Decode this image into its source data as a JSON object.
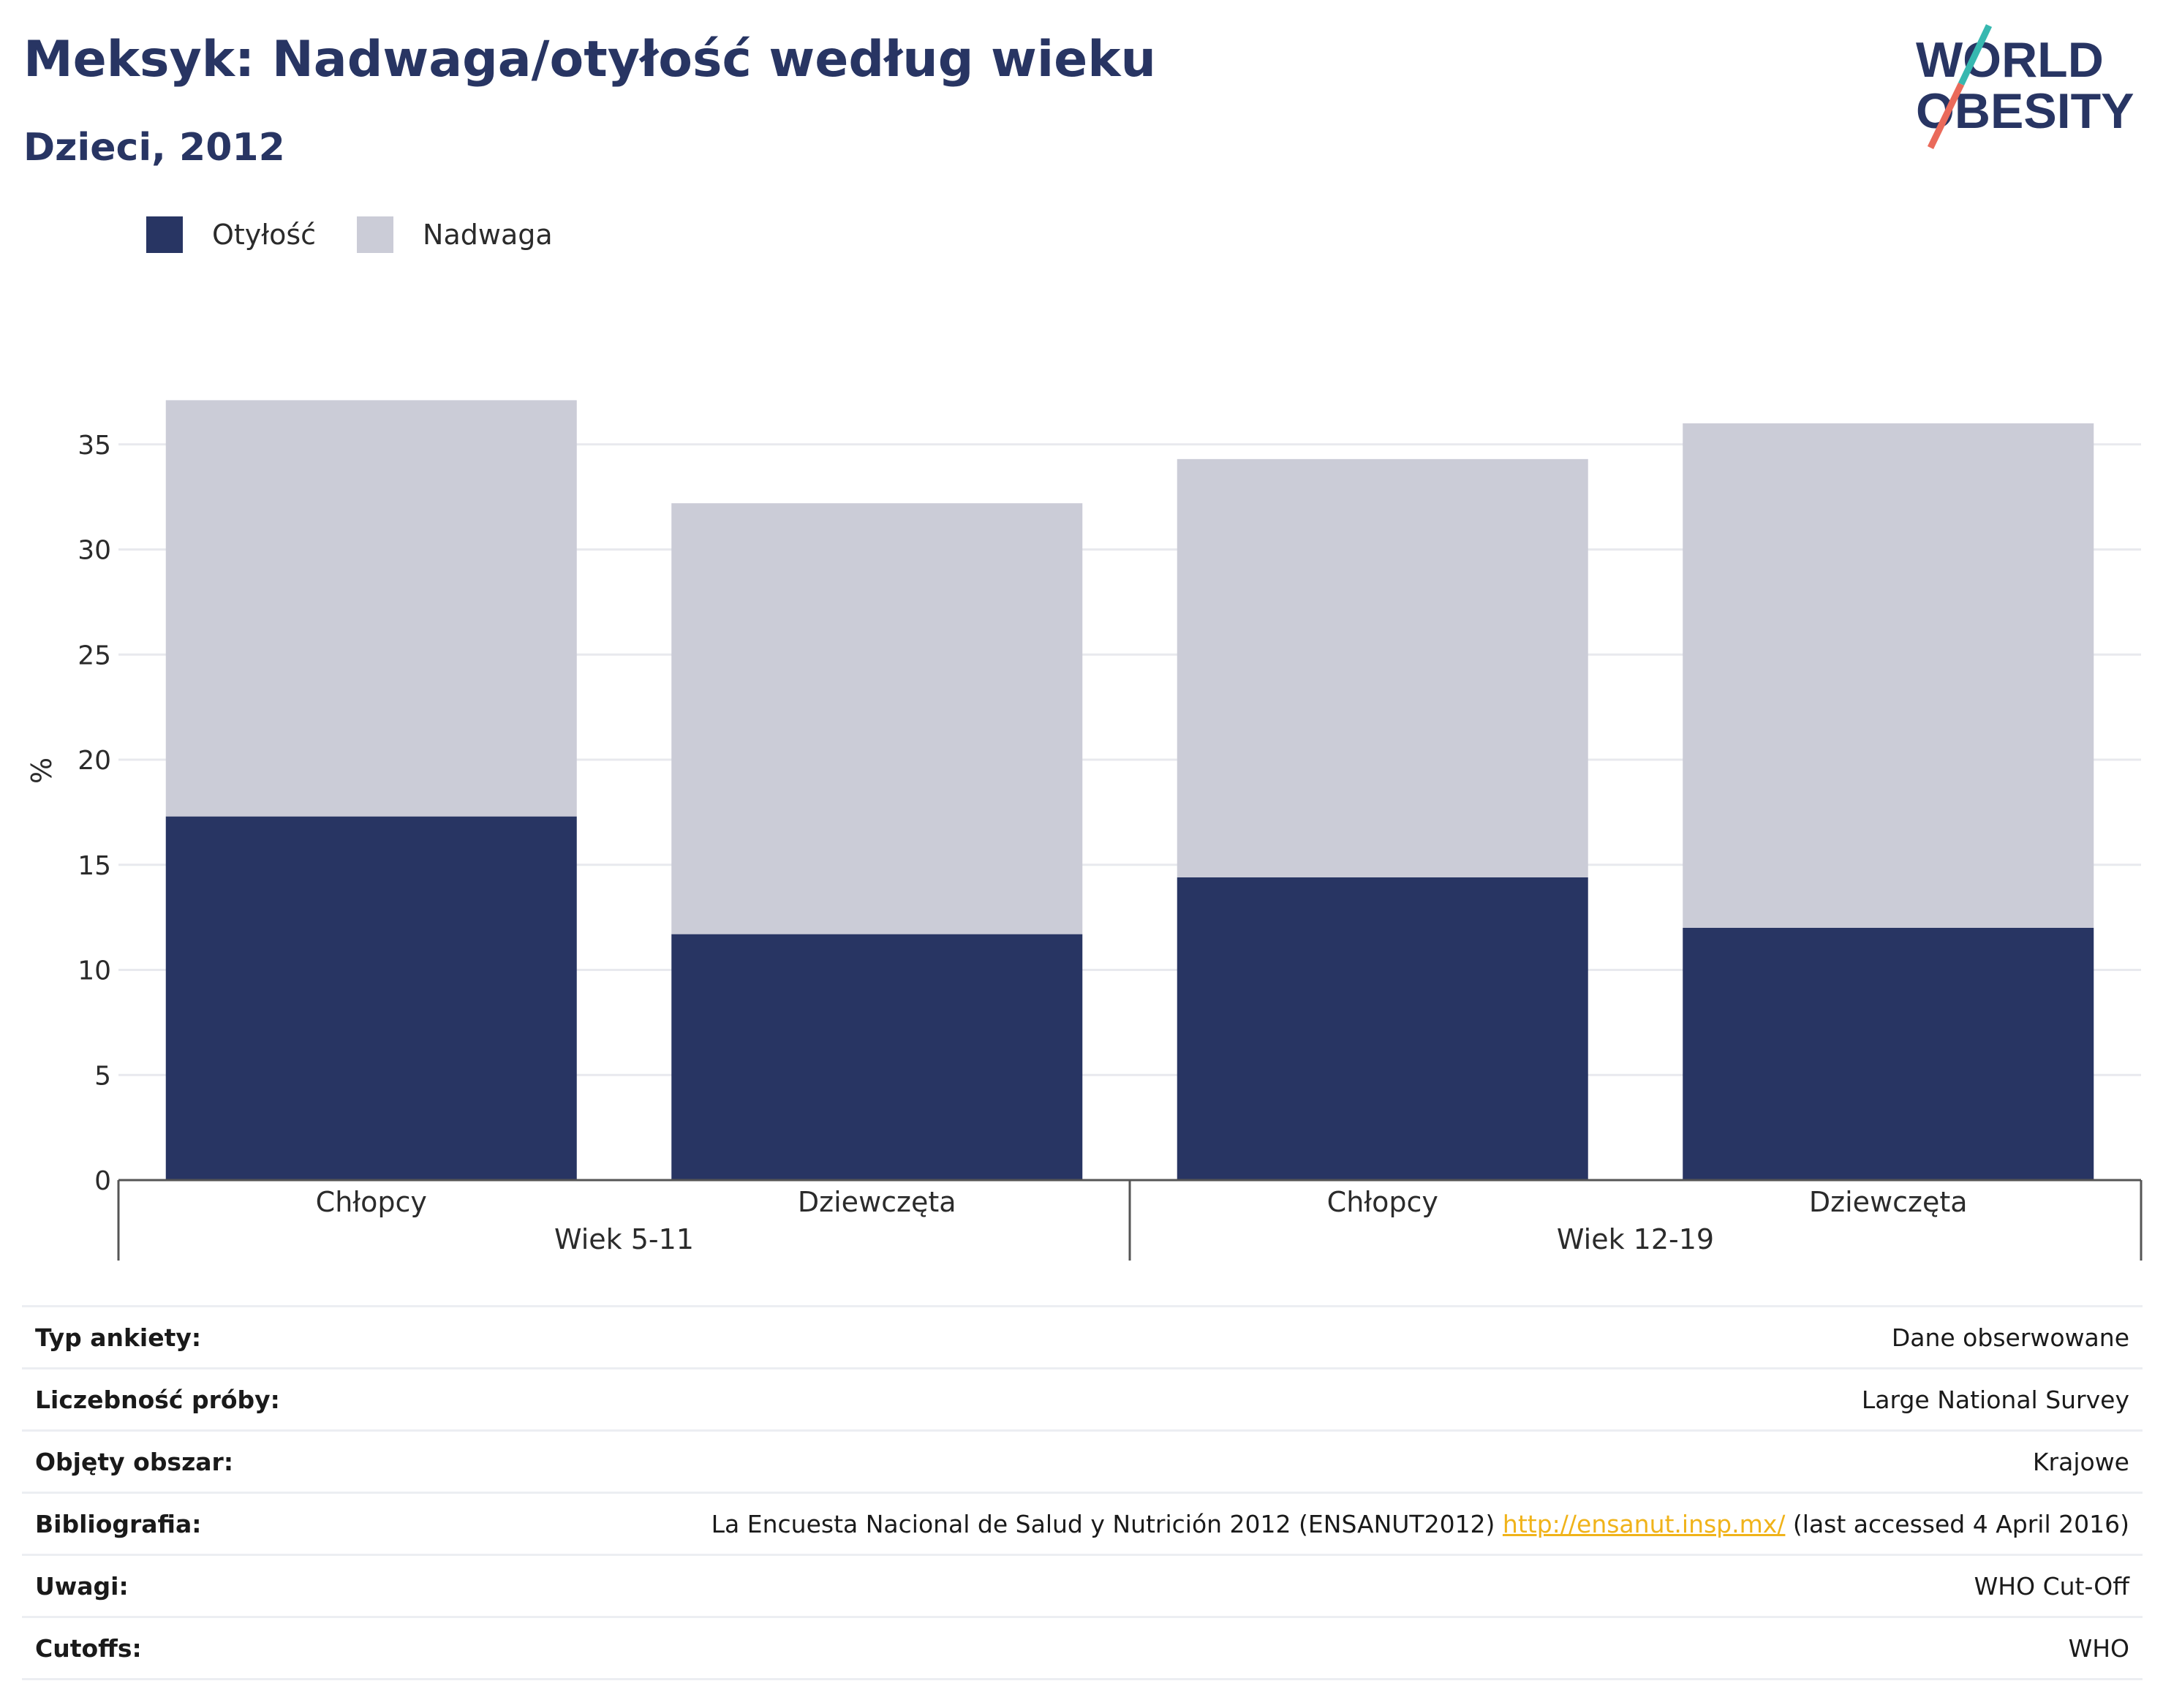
{
  "header": {
    "title": "Meksyk: Nadwaga/otyłość według wieku",
    "subtitle": "Dzieci, 2012"
  },
  "logo": {
    "line1": "WORLD",
    "line2": "OBESITY"
  },
  "colors": {
    "obesity": "#283563",
    "overweight": "#cbccd7",
    "accent_teal": "#37b8b0",
    "accent_coral": "#ea6a5a",
    "link": "#f0b31a"
  },
  "chart_data": {
    "type": "bar",
    "stacked": true,
    "title": "",
    "xlabel": "",
    "ylabel": "%",
    "ylim": [
      0,
      37.5
    ],
    "yticks": [
      0,
      5,
      10,
      15,
      20,
      25,
      30,
      35
    ],
    "grid": true,
    "legend_position": "top-left",
    "groups": [
      {
        "label": "Wiek 5-11",
        "categories": [
          "Chłopcy",
          "Dziewczęta"
        ]
      },
      {
        "label": "Wiek 12-19",
        "categories": [
          "Chłopcy",
          "Dziewczęta"
        ]
      }
    ],
    "categories": [
      "Chłopcy",
      "Dziewczęta",
      "Chłopcy",
      "Dziewczęta"
    ],
    "series": [
      {
        "name": "Otyłość",
        "values": [
          17.3,
          11.7,
          14.4,
          12.0
        ]
      },
      {
        "name": "Nadwaga",
        "values": [
          19.8,
          20.5,
          19.9,
          24.0
        ]
      }
    ]
  },
  "info_rows": [
    {
      "key": "Typ ankiety:",
      "value": "Dane obserwowane"
    },
    {
      "key": "Liczebność próby:",
      "value": "Large National Survey"
    },
    {
      "key": "Objęty obszar:",
      "value": "Krajowe"
    },
    {
      "key": "Bibliografia:",
      "value_pre": "La Encuesta Nacional de Salud y Nutrición 2012 (ENSANUT2012) ",
      "value_link": "http://ensanut.insp.mx/",
      "value_post": " (last accessed 4 April 2016)"
    },
    {
      "key": "Uwagi:",
      "value": "WHO Cut-Off"
    },
    {
      "key": "Cutoffs:",
      "value": "WHO"
    }
  ]
}
